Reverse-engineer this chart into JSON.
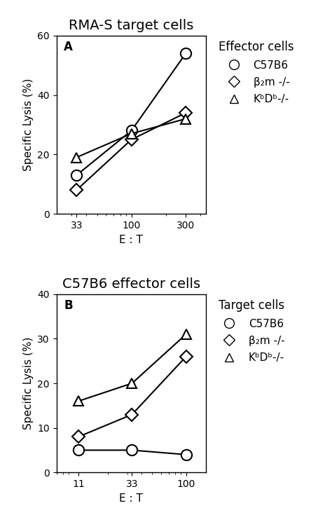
{
  "panel_A": {
    "title": "RMA-S target cells",
    "xlabel": "E : T",
    "ylabel": "Specific Lysis (%)",
    "panel_label": "A",
    "xticks": [
      33,
      100,
      300
    ],
    "xticklabels": [
      "33",
      "100",
      "300"
    ],
    "xlim_log": [
      22,
      450
    ],
    "ylim": [
      0,
      60
    ],
    "yticks": [
      0,
      20,
      40,
      60
    ],
    "legend_title": "Effector cells",
    "series": [
      {
        "label": "C57B6",
        "marker": "circle",
        "x": [
          33,
          100,
          300
        ],
        "y": [
          13,
          28,
          54
        ]
      },
      {
        "label": "β₂m -/-",
        "marker": "diamond",
        "x": [
          33,
          100,
          300
        ],
        "y": [
          8,
          25,
          34
        ]
      },
      {
        "label": "KᵇDᵇ-/-",
        "marker": "triangle",
        "x": [
          33,
          100,
          300
        ],
        "y": [
          19,
          27,
          32
        ]
      }
    ]
  },
  "panel_B": {
    "title": "C57B6 effector cells",
    "xlabel": "E : T",
    "ylabel": "Specific Lysis (%)",
    "panel_label": "B",
    "xticks": [
      11,
      33,
      100
    ],
    "xticklabels": [
      "11",
      "33",
      "100"
    ],
    "xlim_log": [
      7,
      150
    ],
    "ylim": [
      0,
      40
    ],
    "yticks": [
      0,
      10,
      20,
      30,
      40
    ],
    "legend_title": "Target cells",
    "series": [
      {
        "label": "C57B6",
        "marker": "circle",
        "x": [
          11,
          33,
          100
        ],
        "y": [
          5,
          5,
          4
        ]
      },
      {
        "label": "β₂m -/-",
        "marker": "diamond",
        "x": [
          11,
          33,
          100
        ],
        "y": [
          8,
          13,
          26
        ]
      },
      {
        "label": "KᵇDᵇ-/-",
        "marker": "triangle",
        "x": [
          11,
          33,
          100
        ],
        "y": [
          16,
          20,
          31
        ]
      }
    ]
  },
  "background_color": "#ffffff",
  "line_color": "#000000",
  "font_size_title": 14,
  "font_size_axis": 11,
  "font_size_tick": 10,
  "font_size_legend_title": 12,
  "font_size_legend": 11,
  "font_size_panel_label": 12,
  "marker_size_circle": 11,
  "marker_size_diamond": 9,
  "marker_size_triangle": 10,
  "linewidth": 1.5
}
